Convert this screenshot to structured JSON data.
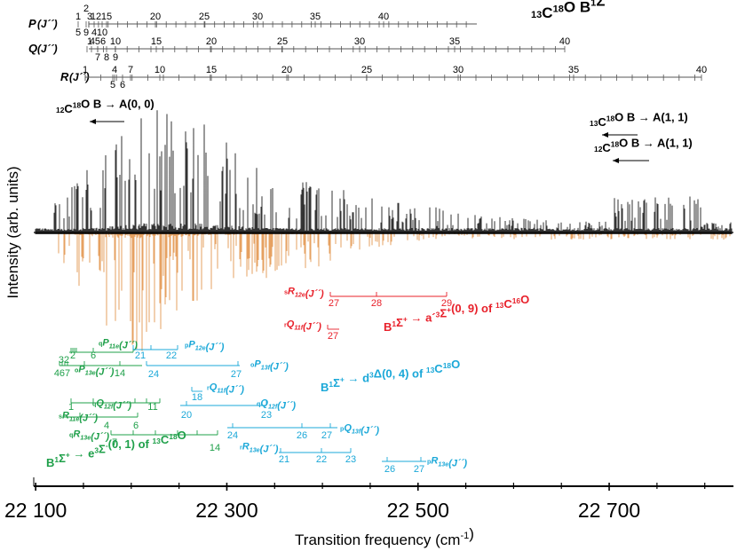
{
  "chart_data": {
    "type": "line",
    "title": "13C18O  B1Σ+ → A1Π (0, 0)",
    "title_parts": {
      "sup1": "13",
      "c": "C",
      "sup2": "18",
      "o": "O",
      "space": "  B",
      "sup3": "1",
      "sigma": "Σ",
      "sup4": "+",
      "arrow": " → A",
      "sup5": "1",
      "pi": "Π (0, 0)"
    },
    "xlabel": "Transition frequency (cm",
    "xlabel_sup": "-1",
    "xlabel_end": ")",
    "ylabel": "Intensity (arb. units)",
    "xlim": [
      22098,
      22830
    ],
    "x_ticks": [
      22100,
      22300,
      22500,
      22700
    ],
    "x_tick_labels": [
      "22 100",
      "22 300",
      "22 500",
      "22 700"
    ],
    "minor_tick_step": 50,
    "grid": false,
    "series": [
      {
        "name": "experiment",
        "color": "#000000",
        "direction": "up"
      },
      {
        "name": "simulation",
        "color": "#E08A3A",
        "direction": "down"
      }
    ],
    "branch_ladders": [
      {
        "label": "P(J´´)",
        "labels_shown": [
          "1",
          "2",
          "3",
          "4",
          "5",
          "9",
          "10",
          "11",
          "12",
          "15",
          "20",
          "25",
          "30",
          "35",
          "40"
        ]
      },
      {
        "label": "Q(J´´)",
        "labels_shown": [
          "1",
          "4",
          "5",
          "6",
          "7",
          "8",
          "9",
          "10",
          "15",
          "20",
          "25",
          "30",
          "35",
          "40"
        ]
      },
      {
        "label": "R(J´´)",
        "labels_shown": [
          "1",
          "4",
          "5",
          "6",
          "7",
          "10",
          "15",
          "20",
          "25",
          "30",
          "35",
          "40"
        ]
      }
    ],
    "band_labels": [
      {
        "text": "12C18O B → A(0, 0)"
      },
      {
        "text": "13C18O B → A(1, 1)"
      },
      {
        "text": "12C18O B → A(1, 1)"
      }
    ],
    "perturber_bands": [
      {
        "label": "B1Σ+ → a'3Σ+(0, 9) of 13C16O",
        "color": "#E8202A"
      },
      {
        "label": "B1Σ+ → d3Δ(0, 4) of 13C18O",
        "color": "#1BA8D8"
      },
      {
        "label": "B1Σ+ → e3Σ-(0, 1) of 13C18O",
        "color": "#1FA04A"
      }
    ]
  },
  "labels": {
    "p": "P(J´´)",
    "q": "Q(J´´)",
    "r": "R(J´´)",
    "b1": "12C18O B → A(0, 0)",
    "b2": "13C18O B → A(1, 1)",
    "b3": "12C18O B → A(1, 1)",
    "red_title": "B1Σ+ → a'3Σ+(0, 9) of 13C16O",
    "blue_title": "B1Σ+ → d3Δ(0, 4) of 13C18O",
    "green_title": "B1Σ+ → e3Σ-(0, 1) of 13C18O"
  }
}
